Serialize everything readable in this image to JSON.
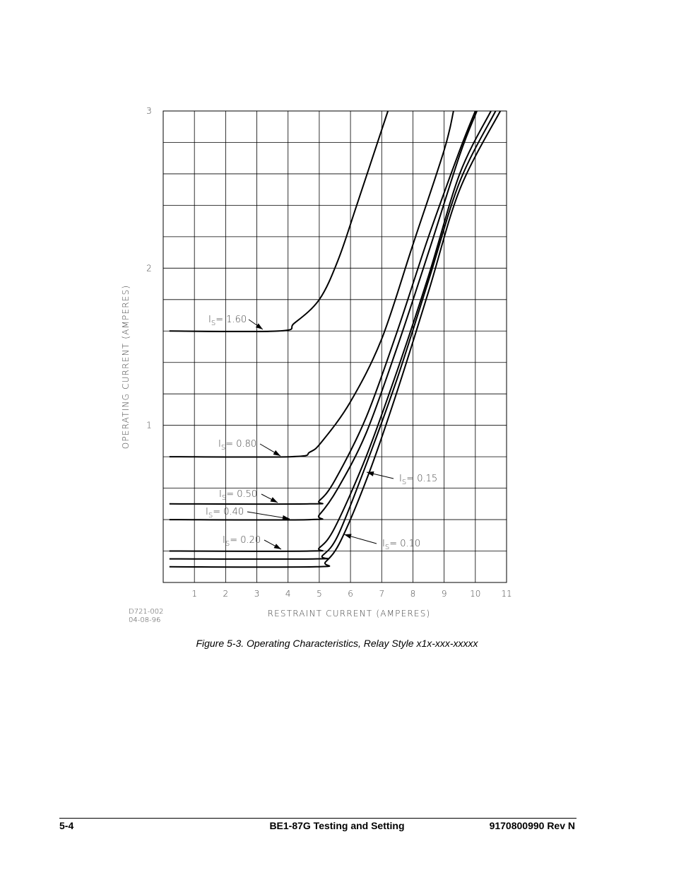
{
  "figure": {
    "caption": "Figure 5-3. Operating Characteristics, Relay Style x1x-xxx-xxxxx",
    "drawing_number": "D721-002",
    "drawing_date": "04-08-96"
  },
  "footer": {
    "page": "5-4",
    "title": "BE1-87G Testing and Setting",
    "revision": "9170800990 Rev N"
  },
  "chart_data": {
    "type": "line",
    "xlabel": "RESTRAINT CURRENT (AMPERES)",
    "ylabel": "OPERATING CURRENT (AMPERES)",
    "xlim": [
      0,
      11
    ],
    "ylim": [
      0,
      3
    ],
    "x_ticks": [
      {
        "value": 1,
        "label": "1"
      },
      {
        "value": 2,
        "label": "2"
      },
      {
        "value": 3,
        "label": "3"
      },
      {
        "value": 4,
        "label": "4"
      },
      {
        "value": 5,
        "label": "5"
      },
      {
        "value": 6,
        "label": "6"
      },
      {
        "value": 7,
        "label": "7"
      },
      {
        "value": 8,
        "label": "8"
      },
      {
        "value": 9,
        "label": "9"
      },
      {
        "value": 10,
        "label": "10"
      },
      {
        "value": 11,
        "label": "11"
      }
    ],
    "y_ticks": [
      {
        "value": 1,
        "label": "1"
      },
      {
        "value": 2,
        "label": "2"
      },
      {
        "value": 3,
        "label": "3"
      }
    ],
    "grid": true,
    "series": [
      {
        "name": "IS= 1.60",
        "label_value": "1.60",
        "points": [
          [
            0.2,
            1.6
          ],
          [
            3.7,
            1.6
          ],
          [
            4.2,
            1.65
          ],
          [
            5.0,
            1.8
          ],
          [
            5.6,
            2.05
          ],
          [
            6.2,
            2.4
          ],
          [
            7.2,
            3.0
          ]
        ]
      },
      {
        "name": "IS= 0.80",
        "label_value": "0.80",
        "points": [
          [
            0.2,
            0.8
          ],
          [
            4.1,
            0.8
          ],
          [
            4.7,
            0.83
          ],
          [
            5.1,
            0.9
          ],
          [
            6.0,
            1.15
          ],
          [
            7.0,
            1.55
          ],
          [
            8.0,
            2.15
          ],
          [
            9.0,
            2.75
          ],
          [
            9.3,
            3.0
          ]
        ]
      },
      {
        "name": "IS= 0.50",
        "label_value": "0.50",
        "points": [
          [
            0.2,
            0.5
          ],
          [
            4.7,
            0.5
          ],
          [
            5.0,
            0.52
          ],
          [
            5.5,
            0.65
          ],
          [
            6.5,
            1.05
          ],
          [
            7.5,
            1.6
          ],
          [
            8.5,
            2.2
          ],
          [
            9.5,
            2.75
          ],
          [
            10.0,
            3.0
          ]
        ]
      },
      {
        "name": "IS= 0.40",
        "label_value": "0.40",
        "points": [
          [
            0.2,
            0.4
          ],
          [
            4.7,
            0.4
          ],
          [
            5.0,
            0.43
          ],
          [
            5.6,
            0.6
          ],
          [
            6.5,
            0.95
          ],
          [
            7.5,
            1.5
          ],
          [
            8.5,
            2.1
          ],
          [
            9.5,
            2.72
          ],
          [
            10.05,
            3.0
          ]
        ]
      },
      {
        "name": "IS= 0.20",
        "label_value": "0.20",
        "points": [
          [
            0.2,
            0.2
          ],
          [
            4.7,
            0.2
          ],
          [
            5.0,
            0.22
          ],
          [
            5.5,
            0.35
          ],
          [
            6.5,
            0.8
          ],
          [
            7.5,
            1.35
          ],
          [
            8.5,
            1.95
          ],
          [
            9.5,
            2.6
          ],
          [
            10.5,
            3.0
          ]
        ]
      },
      {
        "name": "IS= 0.15",
        "label_value": "0.15",
        "points": [
          [
            0.2,
            0.15
          ],
          [
            4.9,
            0.15
          ],
          [
            5.1,
            0.17
          ],
          [
            5.6,
            0.3
          ],
          [
            6.5,
            0.75
          ],
          [
            7.5,
            1.3
          ],
          [
            8.5,
            1.92
          ],
          [
            9.5,
            2.55
          ],
          [
            10.65,
            3.0
          ]
        ]
      },
      {
        "name": "IS= 0.10",
        "label_value": "0.10",
        "points": [
          [
            0.2,
            0.1
          ],
          [
            4.9,
            0.1
          ],
          [
            5.2,
            0.13
          ],
          [
            5.7,
            0.27
          ],
          [
            6.6,
            0.7
          ],
          [
            7.5,
            1.22
          ],
          [
            8.5,
            1.85
          ],
          [
            9.5,
            2.5
          ],
          [
            10.8,
            3.0
          ]
        ]
      }
    ],
    "annotations": [
      {
        "series": "IS= 1.60",
        "prefix": "I",
        "subscript": "S",
        "eq": "=",
        "value": "1.60"
      },
      {
        "series": "IS= 0.80",
        "prefix": "I",
        "subscript": "S",
        "eq": "=",
        "value": "0.80"
      },
      {
        "series": "IS= 0.50",
        "prefix": "I",
        "subscript": "S",
        "eq": "=",
        "value": "0.50"
      },
      {
        "series": "IS= 0.40",
        "prefix": "I",
        "subscript": "S",
        "eq": "=",
        "value": "0.40"
      },
      {
        "series": "IS= 0.20",
        "prefix": "I",
        "subscript": "S",
        "eq": "=",
        "value": "0.20"
      },
      {
        "series": "IS= 0.15",
        "prefix": "I",
        "subscript": "S",
        "eq": "=",
        "value": "0.15"
      },
      {
        "series": "IS= 0.10",
        "prefix": "I",
        "subscript": "S",
        "eq": "=",
        "value": "0.10"
      }
    ]
  }
}
